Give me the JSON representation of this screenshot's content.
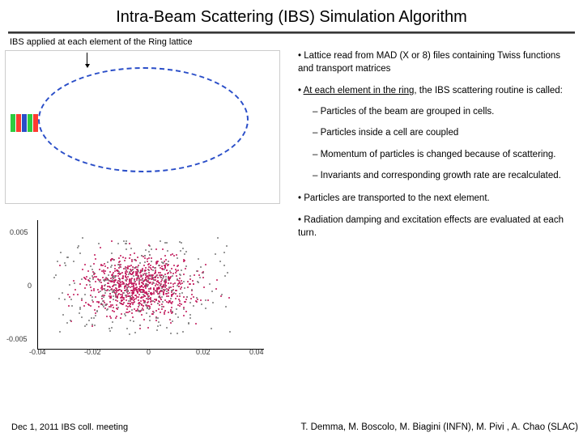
{
  "title": "Intra-Beam Scattering (IBS) Simulation Algorithm",
  "subtitle": "IBS applied at each element of the Ring lattice",
  "ring_figure": {
    "type": "diagram",
    "oval_border_color": "#2a4ec8",
    "block_colors": [
      "#2ecc40",
      "#ff3b30",
      "#2a4ec8",
      "#2ecc40",
      "#ff3b30"
    ],
    "arrow_color": "#000000",
    "background": "#ffffff"
  },
  "scatter_figure": {
    "type": "scatter",
    "x_ticks": [
      "-0.04",
      "-0.02",
      "0",
      "0.02",
      "0.04"
    ],
    "y_ticks": [
      "0.005",
      "0",
      "-0.005"
    ],
    "point_color_core": "#c2185b",
    "point_color_halo": "#7a7a7a",
    "background": "#ffffff",
    "grid": false
  },
  "bullets": {
    "b1": "Lattice read from MAD (X or 8) files containing Twiss functions and transport matrices",
    "b2_pre": "At each element in the ring",
    "b2_post": ", the IBS scattering routine is called:",
    "s1": "Particles of the beam are grouped in cells.",
    "s2": "Particles inside a cell are coupled",
    "s3": "Momentum of particles is changed because of scattering.",
    "s4": "Invariants and corresponding growth rate are recalculated.",
    "b3": "Particles are transported to the next element.",
    "b4": "Radiation damping and excitation effects are evaluated at each turn."
  },
  "footer": {
    "left": "Dec 1, 2011   IBS coll. meeting",
    "authors": "T. Demma, M. Boscolo, M. Biagini (INFN), M. Pivi , A. Chao (SLAC)"
  }
}
